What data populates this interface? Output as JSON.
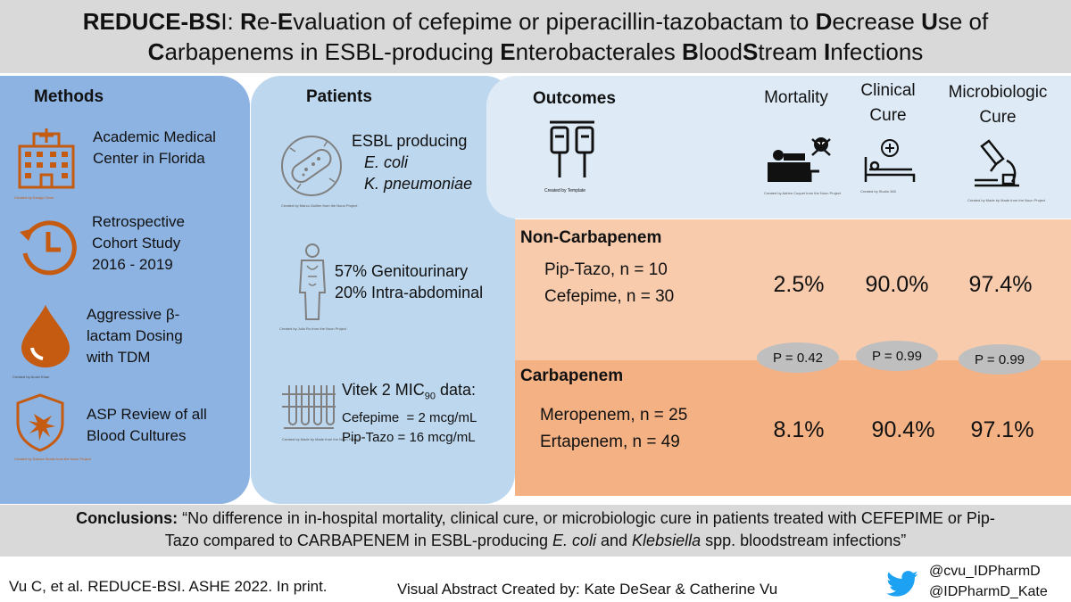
{
  "title": {
    "line1": [
      {
        "t": "REDUCE-BS",
        "b": true
      },
      {
        "t": "I: ",
        "b": false
      },
      {
        "t": "R",
        "b": true
      },
      {
        "t": "e-",
        "b": false
      },
      {
        "t": "E",
        "b": true
      },
      {
        "t": "valuation of cefepime or piperacillin-tazobactam to ",
        "b": false
      },
      {
        "t": "D",
        "b": true
      },
      {
        "t": "ecrease ",
        "b": false
      },
      {
        "t": "U",
        "b": true
      },
      {
        "t": "se of",
        "b": false
      }
    ],
    "line2": [
      {
        "t": "C",
        "b": true
      },
      {
        "t": "arbapenems in ESBL-producing ",
        "b": false
      },
      {
        "t": "E",
        "b": true
      },
      {
        "t": "nterobacterales ",
        "b": false
      },
      {
        "t": "B",
        "b": true
      },
      {
        "t": "lood",
        "b": false
      },
      {
        "t": "S",
        "b": true
      },
      {
        "t": "tream ",
        "b": false
      },
      {
        "t": "I",
        "b": true
      },
      {
        "t": "nfections",
        "b": false
      }
    ]
  },
  "methods": {
    "heading": "Methods",
    "items": [
      {
        "icon": "hospital-icon",
        "text1": "Academic Medical",
        "text2": "Center in Florida",
        "text3": "",
        "credit": "Created by Design Circle"
      },
      {
        "icon": "clock-history-icon",
        "text1": "Retrospective",
        "text2": "Cohort Study",
        "text3": "2016 - 2019",
        "credit": ""
      },
      {
        "icon": "blood-drop-icon",
        "text1": "Aggressive β-",
        "text2": "lactam Dosing",
        "text3": "with TDM",
        "credit": "Created by Arosh Khan"
      },
      {
        "icon": "shield-virus-icon",
        "text1": "ASP Review of all",
        "text2": "Blood Cultures",
        "text3": "",
        "credit": "Created by Sakura Studio from the Noun Project"
      }
    ]
  },
  "patients": {
    "heading": "Patients",
    "esbl": {
      "line1": "ESBL producing",
      "line2": "E. coli",
      "line3": "K. pneumoniae",
      "credit": "Created by Marco Guillen from the Noun Project"
    },
    "source": {
      "line1": "57% Genitourinary",
      "line2": "20% Intra-abdominal",
      "credit": "Created by Julio Ro from the Noun Project"
    },
    "vitek": {
      "label": "Vitek 2 MIC",
      "sub": "90",
      "suffix": " data:",
      "line2": "Cefepime  = 2 mcg/mL",
      "line3": "Pip-Tazo = 16 mcg/mL",
      "credit": "Created by Made by Made from the Noun Project"
    }
  },
  "outcomes": {
    "heading": "Outcomes",
    "iv_credit": "Created by Template",
    "metrics": [
      {
        "line1": "Mortality",
        "line2": "",
        "credit": "Created by Adrien Coquet from the Noun Project"
      },
      {
        "line1": "Clinical",
        "line2": "Cure",
        "credit": "Created by Studio 365"
      },
      {
        "line1": "Microbiologic",
        "line2": "Cure",
        "credit": "Created by Made by Made from the Noun Project"
      }
    ]
  },
  "groups": {
    "noncarb": {
      "heading": "Non-Carbapenem",
      "row1": "Pip-Tazo, n = 10",
      "row2": "Cefepime, n = 30",
      "values": [
        "2.5%",
        "90.0%",
        "97.4%"
      ]
    },
    "carb": {
      "heading": "Carbapenem",
      "row1": "Meropenem, n = 25",
      "row2": "Ertapenem, n = 49",
      "values": [
        "8.1%",
        "90.4%",
        "97.1%"
      ]
    },
    "pvalues": [
      "P = 0.42",
      "P = 0.99",
      "P = 0.99"
    ]
  },
  "conclusions": {
    "label": "Conclusions:",
    "text1": " “No difference in in-hospital mortality, clinical cure, or microbiologic cure in patients treated with CEFEPIME or Pip-",
    "text2a": "Tazo compared to CARBAPENEM in ESBL-producing ",
    "ecoli": "E. coli",
    "text2b": " and ",
    "kleb": "Klebsiella",
    "text2c": " spp. bloodstream infections”"
  },
  "footer": {
    "citation": "Vu C, et al. REDUCE-BSI. ASHE 2022. In print.",
    "credit": "Visual Abstract Created by: Kate DeSear & Catherine Vu",
    "twitter_icon": "twitter-bird-icon",
    "handle1": "@cvu_IDPharmD",
    "handle2": "@IDPharmD_Kate"
  },
  "colors": {
    "header_gray": "#d9d9d9",
    "methods_blue": "#8db3e2",
    "patients_blue": "#bdd7ee",
    "outcomes_blue": "#deebf7",
    "noncarb_peach": "#f8cbad",
    "carb_orange": "#f4b183",
    "icon_orange": "#c55a11",
    "twitter_blue": "#1da1f2"
  }
}
